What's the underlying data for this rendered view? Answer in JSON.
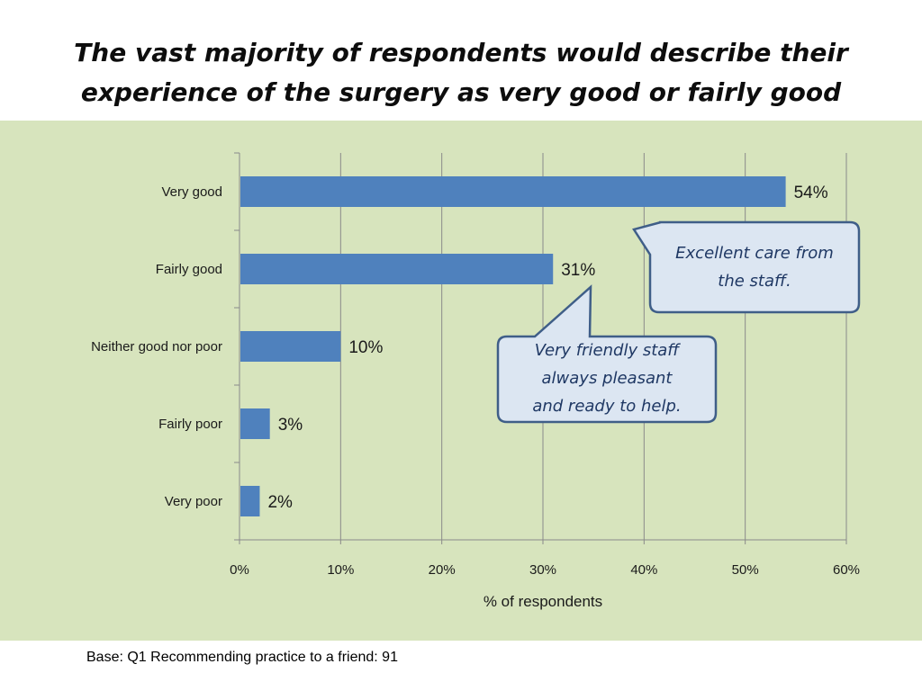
{
  "title_lines": [
    "The vast majority of respondents would describe their",
    "experience of the surgery as very good or fairly good"
  ],
  "chart_data": {
    "type": "bar",
    "orientation": "horizontal",
    "categories": [
      "Very good",
      "Fairly good",
      "Neither good nor poor",
      "Fairly poor",
      "Very poor"
    ],
    "values": [
      54,
      31,
      10,
      3,
      2
    ],
    "data_labels": [
      "54%",
      "31%",
      "10%",
      "3%",
      "2%"
    ],
    "xlabel": "% of respondents",
    "ylabel": "",
    "xlim": [
      0,
      60
    ],
    "x_ticks": [
      "0%",
      "10%",
      "20%",
      "30%",
      "40%",
      "50%",
      "60%"
    ],
    "grid": "vertical",
    "bar_color": "#4f81bd",
    "background_color": "#d7e4bd"
  },
  "callouts": [
    {
      "lines": [
        "Excellent care from",
        "the staff."
      ]
    },
    {
      "lines": [
        "Very friendly staff",
        "always pleasant",
        "and ready to help."
      ]
    }
  ],
  "base_note": "Base: Q1 Recommending practice to a friend: 91"
}
